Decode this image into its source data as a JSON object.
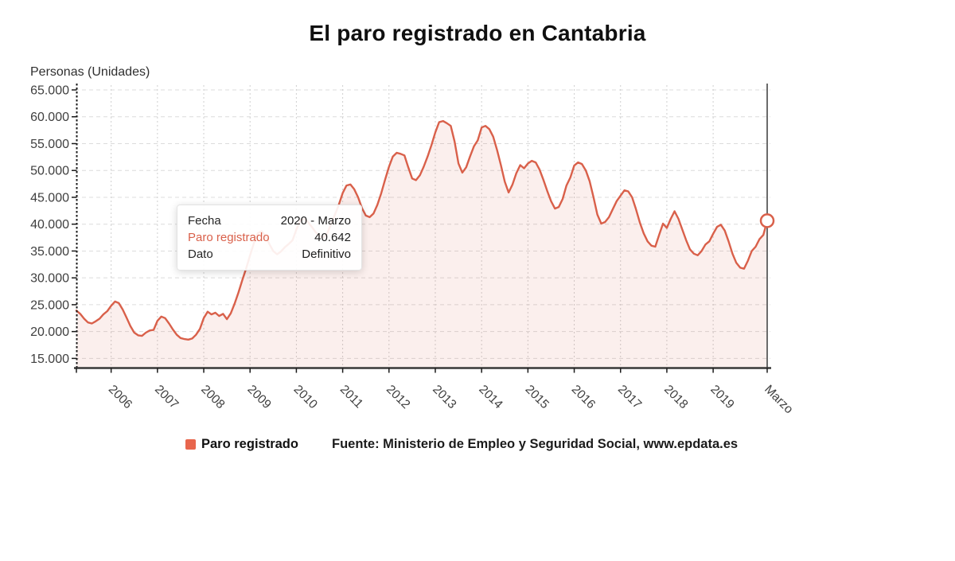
{
  "page": {
    "title": "El paro registrado en Cantabria"
  },
  "y_axis_label": "Personas (Unidades)",
  "legend": {
    "items": [
      {
        "label": "Paro registrado",
        "color": "#e8664d"
      }
    ]
  },
  "source_text": "Fuente: Ministerio de Empleo y Seguridad Social, www.epdata.es",
  "tooltip": {
    "rows": [
      {
        "label": "Fecha",
        "value": "2020 - Marzo"
      },
      {
        "label": "Paro registrado",
        "value": "40.642",
        "accent": true
      },
      {
        "label": "Dato",
        "value": "Definitivo"
      }
    ]
  },
  "colors": {
    "accent": "#d9604a",
    "area_fill": "rgba(217,96,74,0.10)",
    "grid_h": "#dcdcdc",
    "grid_v": "#cfcfcf",
    "axis": "#383838",
    "tick_text": "#3f3f3f",
    "crosshair": "#6b6b6b"
  },
  "chart_data": {
    "type": "line",
    "title": "El paro registrado en Cantabria",
    "xlabel": "",
    "ylabel": "Personas (Unidades)",
    "x_start": "2005-04",
    "x_freq": "monthly",
    "ylim": [
      13200,
      65000
    ],
    "y_ticks": [
      15000,
      20000,
      25000,
      30000,
      35000,
      40000,
      45000,
      50000,
      55000,
      60000,
      65000
    ],
    "grid": true,
    "legend_position": "bottom",
    "x_tick_labels": [
      {
        "label": "2006",
        "month_index": 9
      },
      {
        "label": "2007",
        "month_index": 21
      },
      {
        "label": "2008",
        "month_index": 33
      },
      {
        "label": "2009",
        "month_index": 45
      },
      {
        "label": "2010",
        "month_index": 57
      },
      {
        "label": "2011",
        "month_index": 69
      },
      {
        "label": "2012",
        "month_index": 81
      },
      {
        "label": "2013",
        "month_index": 93
      },
      {
        "label": "2014",
        "month_index": 105
      },
      {
        "label": "2015",
        "month_index": 117
      },
      {
        "label": "2016",
        "month_index": 129
      },
      {
        "label": "2017",
        "month_index": 141
      },
      {
        "label": "2018",
        "month_index": 153
      },
      {
        "label": "2019",
        "month_index": 165
      },
      {
        "label": "Marzo",
        "month_index": 179,
        "no_gridline": true
      }
    ],
    "highlight": {
      "month": "2020-03",
      "value": 40642,
      "marker": "open-circle",
      "crosshair": true
    },
    "series": [
      {
        "name": "Paro registrado",
        "values": [
          23900,
          23300,
          22400,
          21700,
          21500,
          21900,
          22400,
          23200,
          23800,
          24800,
          25600,
          25300,
          24100,
          22600,
          21000,
          19800,
          19300,
          19200,
          19800,
          20200,
          20300,
          22000,
          22800,
          22500,
          21500,
          20400,
          19400,
          18800,
          18600,
          18500,
          18700,
          19400,
          20500,
          22500,
          23700,
          23200,
          23500,
          22900,
          23300,
          22300,
          23400,
          25200,
          27300,
          29600,
          31800,
          34200,
          36500,
          38300,
          38700,
          37800,
          36300,
          35000,
          34400,
          34900,
          35700,
          36300,
          37000,
          39000,
          40700,
          41000,
          40400,
          39500,
          38500,
          37800,
          37500,
          38300,
          40000,
          41800,
          43600,
          45800,
          47200,
          47400,
          46500,
          45000,
          43000,
          41600,
          41300,
          42000,
          43600,
          45800,
          48300,
          50700,
          52600,
          53300,
          53100,
          52800,
          50600,
          48500,
          48200,
          49100,
          50700,
          52600,
          54700,
          57100,
          59000,
          59200,
          58800,
          58300,
          55400,
          51300,
          49600,
          50600,
          52600,
          54500,
          55600,
          58000,
          58300,
          57700,
          56300,
          53800,
          51000,
          47900,
          45900,
          47400,
          49500,
          51000,
          50400,
          51300,
          51800,
          51500,
          50200,
          48300,
          46200,
          44300,
          42900,
          43200,
          44700,
          47200,
          48700,
          50900,
          51500,
          51200,
          50000,
          48000,
          45000,
          41800,
          40100,
          40400,
          41300,
          42800,
          44300,
          45300,
          46300,
          46100,
          45000,
          42800,
          40300,
          38300,
          36800,
          36000,
          35800,
          38000,
          40100,
          39300,
          41000,
          42400,
          41000,
          39000,
          37000,
          35300,
          34500,
          34200,
          35000,
          36200,
          36800,
          38200,
          39500,
          39900,
          38800,
          36800,
          34500,
          32800,
          31900,
          31700,
          33200,
          35000,
          35800,
          37200,
          38000,
          40642
        ]
      }
    ]
  }
}
